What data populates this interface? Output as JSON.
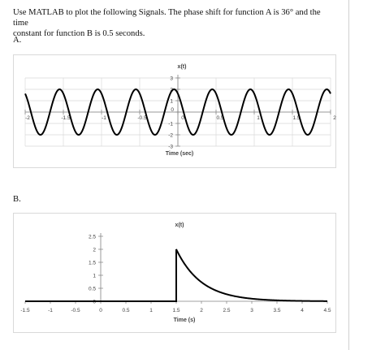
{
  "problem": {
    "line1": "Use MATLAB to plot the following Signals.  The phase shift for function A is 36° and the time",
    "line2": "constant for function B is 0.5 seconds."
  },
  "section_a_label": "A.",
  "section_b_label": "B.",
  "chart_data": [
    {
      "type": "line",
      "title": "x(t)",
      "xlabel": "Time (sec)",
      "ylabel": "",
      "xlim": [
        -2,
        2
      ],
      "ylim": [
        -3,
        3
      ],
      "x_ticks": [
        -2,
        -1.5,
        -1,
        -0.5,
        0,
        0.5,
        1,
        1.5,
        2
      ],
      "x_tick_labels": [
        "-2",
        "-1.5",
        "-1",
        "-0.5",
        "0",
        "0.5",
        "1",
        "1.5",
        "2"
      ],
      "y_ticks": [
        -3,
        -2,
        -1,
        0,
        1,
        2,
        3
      ],
      "y_tick_labels": [
        "-3",
        "-2",
        "-1",
        "0",
        "1",
        "2",
        "3"
      ],
      "grid": true,
      "series": [
        {
          "amplitude": 2,
          "frequency_hz": 2,
          "phase_deg": 36,
          "x_range": [
            -2,
            2
          ]
        }
      ]
    },
    {
      "type": "line",
      "title": "x(t)",
      "xlabel": "Time (s)",
      "ylabel": "",
      "xlim": [
        -1.5,
        4.5
      ],
      "ylim": [
        0,
        2.5
      ],
      "x_ticks": [
        -1.5,
        -1,
        -0.5,
        0,
        0.5,
        1,
        1.5,
        2,
        2.5,
        3,
        3.5,
        4,
        4.5
      ],
      "x_tick_labels": [
        "-1.5",
        "-1",
        "-0.5",
        "0",
        "0.5",
        "1",
        "1.5",
        "2",
        "2.5",
        "3",
        "3.5",
        "4",
        "4.5"
      ],
      "y_ticks": [
        0,
        0.5,
        1,
        1.5,
        2,
        2.5
      ],
      "y_tick_labels": [
        "0",
        "0.5",
        "1",
        "1.5",
        "2",
        "2.5"
      ],
      "grid": false,
      "series": [
        {
          "step_time": 1.5,
          "peak": 2,
          "time_constant": 0.5,
          "x_range": [
            -1.5,
            4.5
          ]
        }
      ]
    }
  ]
}
